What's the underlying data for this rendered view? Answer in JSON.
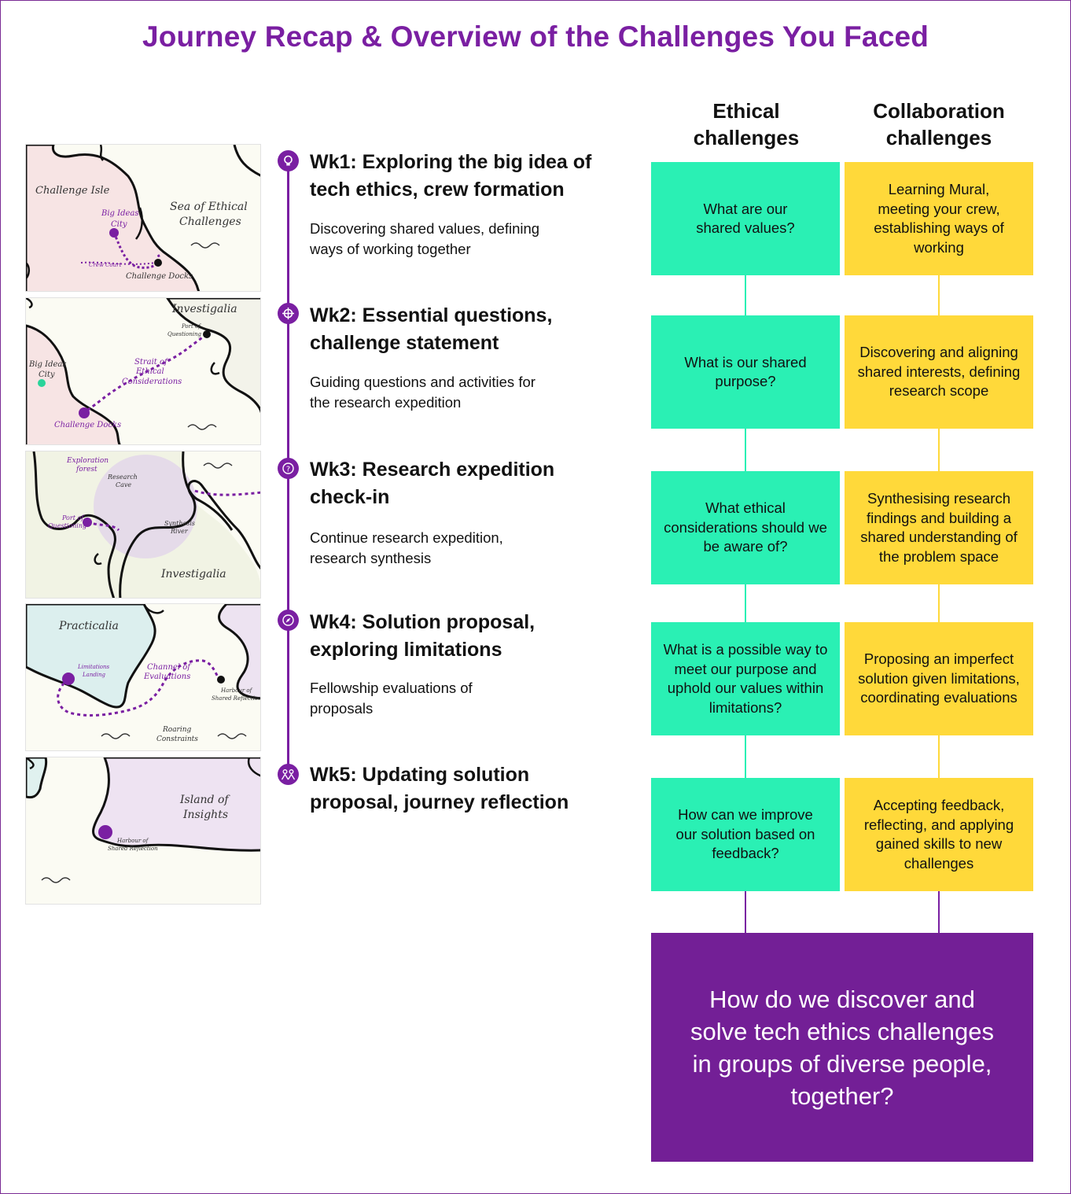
{
  "title": "Journey Recap & Overview of the Challenges You Faced",
  "column_headers": {
    "ethical": "Ethical challenges",
    "collaboration": "Collaboration challenges"
  },
  "weeks": [
    {
      "title": "Wk1: Exploring the big idea of tech ethics, crew formation",
      "description": "Discovering shared values, defining ways of working together",
      "icon": "lightbulb-icon",
      "map_labels": [
        "Challenge Isle",
        "Sea of Ethical Challenges",
        "Big Ideas City",
        "Crew Court",
        "Challenge Docks"
      ]
    },
    {
      "title": "Wk2: Essential questions, challenge statement",
      "description": "Guiding questions and activities for the research expedition",
      "icon": "crosshair-icon",
      "map_labels": [
        "Investigalia",
        "Port of Questioning",
        "Big Ideas City",
        "Strait of Ethical Considerations",
        "Challenge Docks"
      ]
    },
    {
      "title": "Wk3: Research expedition check-in",
      "description": "Continue research expedition, research synthesis",
      "icon": "question-icon",
      "map_labels": [
        "Exploration forest",
        "Research Cave",
        "Port of Questioning",
        "Synthesis River",
        "Investigalia"
      ]
    },
    {
      "title": "Wk4: Solution proposal, exploring limitations",
      "description": "Fellowship evaluations of proposals",
      "icon": "compass-icon",
      "map_labels": [
        "Practicalia",
        "Limitations Landing",
        "Channel of Evaluations",
        "Harbour of Shared Reflection",
        "Roaring Constraints"
      ]
    },
    {
      "title": "Wk5: Updating solution proposal, journey reflection",
      "description": "",
      "icon": "people-icon",
      "map_labels": [
        "Island of Insights",
        "Harbour of Shared Reflection"
      ]
    }
  ],
  "ethical_challenges": [
    "What are our shared values?",
    "What is our shared purpose?",
    "What ethical considerations should we be aware of?",
    "What is a possible way to meet our purpose and uphold our values within limitations?",
    "How can we improve our solution based on feedback?"
  ],
  "collaboration_challenges": [
    "Learning Mural, meeting your crew, establishing ways of working",
    "Discovering and aligning shared interests, defining research scope",
    "Synthesising research findings and building a shared understanding of the problem space",
    "Proposing an imperfect solution given limitations, coordinating evaluations",
    "Accepting feedback, reflecting, and applying gained skills to new challenges"
  ],
  "final_question": "How do we discover and solve tech ethics challenges in groups of diverse people, together?",
  "colors": {
    "purple": "#7a1fa2",
    "ethical_green": "#2af0b4",
    "collaboration_yellow": "#ffd93a",
    "final_purple": "#731f96"
  }
}
